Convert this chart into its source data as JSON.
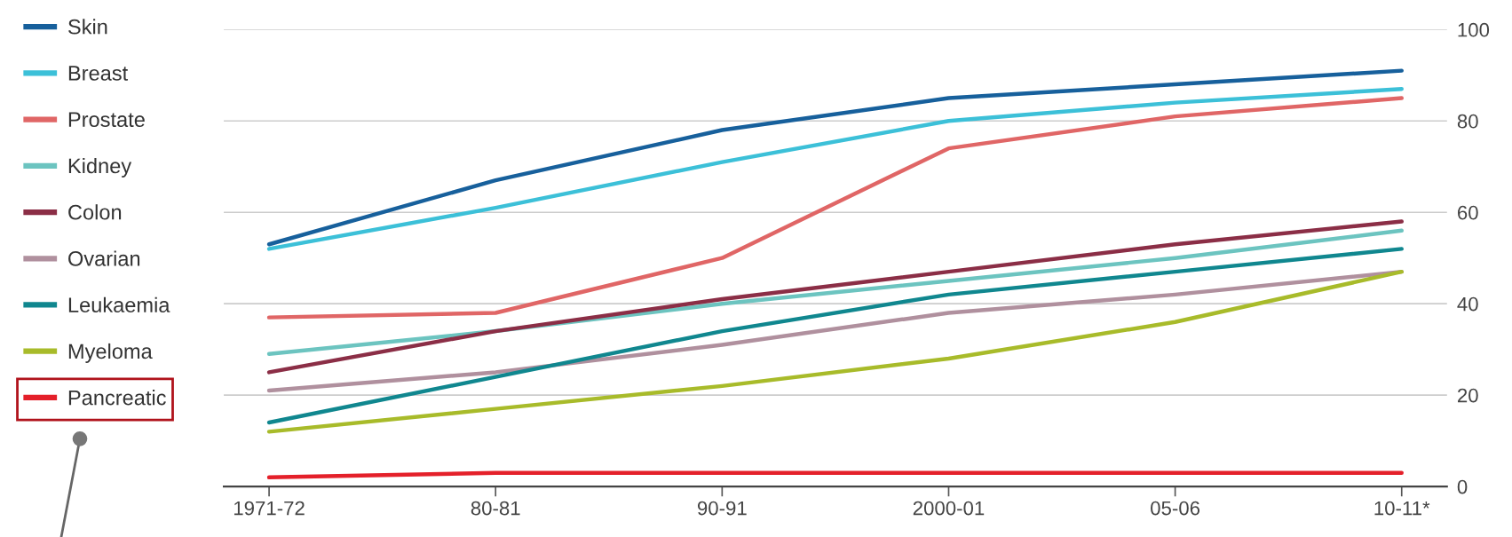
{
  "chart_data": {
    "type": "line",
    "categories": [
      "1971-72",
      "80-81",
      "90-91",
      "2000-01",
      "05-06",
      "10-11*"
    ],
    "ylim": [
      0,
      100
    ],
    "yticks": [
      0,
      20,
      40,
      60,
      80,
      100
    ],
    "grid": "y",
    "legend": "left",
    "marker": "none",
    "line_style": "solid",
    "series": [
      {
        "name": "Skin",
        "color": "#17609c",
        "values": [
          53,
          67,
          78,
          85,
          88,
          91
        ]
      },
      {
        "name": "Breast",
        "color": "#3cc0d8",
        "values": [
          52,
          61,
          71,
          80,
          84,
          87
        ]
      },
      {
        "name": "Prostate",
        "color": "#e06666",
        "values": [
          37,
          38,
          50,
          74,
          81,
          85
        ]
      },
      {
        "name": "Kidney",
        "color": "#6cc4c0",
        "values": [
          29,
          34,
          40,
          45,
          50,
          56
        ]
      },
      {
        "name": "Colon",
        "color": "#8b2e46",
        "values": [
          25,
          34,
          41,
          47,
          53,
          58
        ]
      },
      {
        "name": "Ovarian",
        "color": "#b0909e",
        "values": [
          21,
          25,
          31,
          38,
          42,
          47
        ]
      },
      {
        "name": "Leukaemia",
        "color": "#10878f",
        "values": [
          14,
          24,
          34,
          42,
          47,
          52
        ]
      },
      {
        "name": "Myeloma",
        "color": "#a8bb2a",
        "values": [
          12,
          17,
          22,
          28,
          36,
          47
        ]
      },
      {
        "name": "Pancreatic",
        "color": "#e4202a",
        "values": [
          2,
          3,
          3,
          3,
          3,
          3
        ]
      }
    ]
  }
}
